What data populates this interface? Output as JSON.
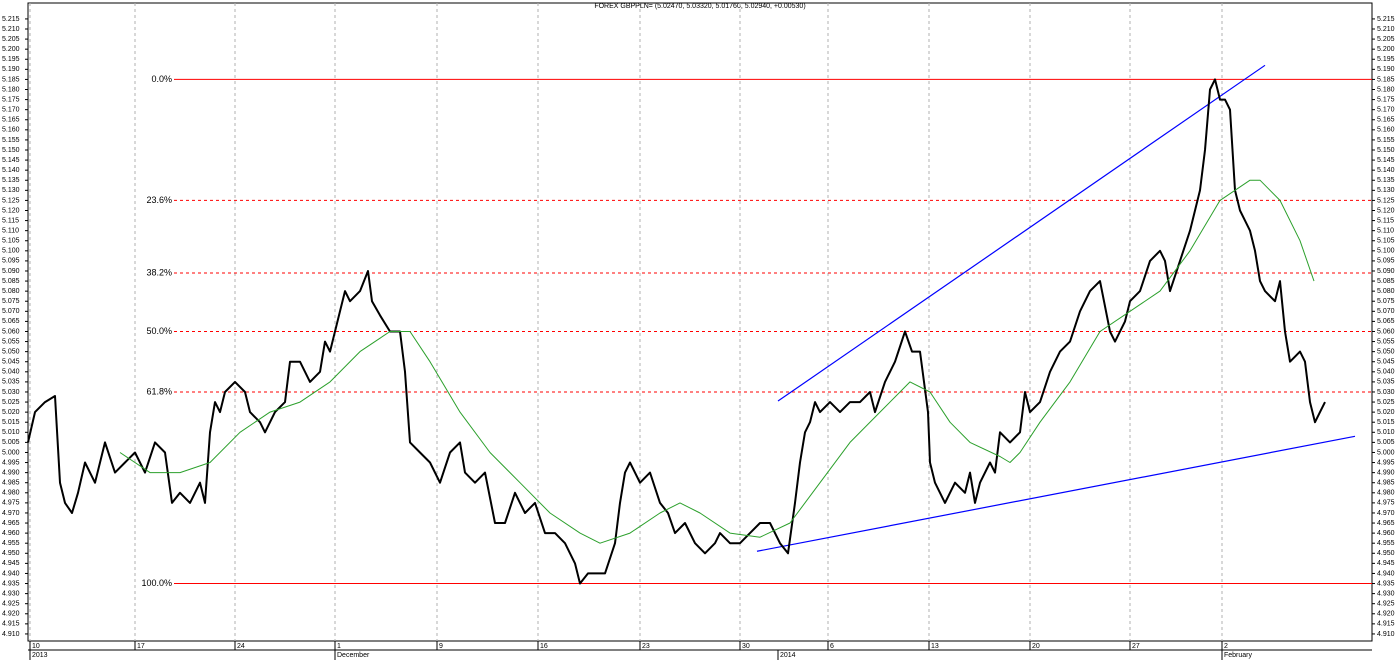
{
  "chart_data": {
    "type": "line",
    "title": "FOREX GBPPLN= (5.02470, 5.03320, 5.01760, 5.02940, +0.00530)",
    "xlim": [
      -0.1,
      67.1
    ],
    "ylim": [
      4.9065,
      5.2229
    ],
    "xticks": [
      {
        "value": 0,
        "label": "10"
      },
      {
        "value": 5.25,
        "label": "17"
      },
      {
        "value": 10.25,
        "label": "24"
      },
      {
        "value": 15.25,
        "label": "1"
      },
      {
        "value": 20.35,
        "label": "9"
      },
      {
        "value": 25.4,
        "label": "16"
      },
      {
        "value": 30.5,
        "label": "23"
      },
      {
        "value": 35.5,
        "label": "30"
      },
      {
        "value": 39.9,
        "label": "6"
      },
      {
        "value": 44.95,
        "label": "13"
      },
      {
        "value": 50,
        "label": "20"
      },
      {
        "value": 55,
        "label": "27"
      },
      {
        "value": 59.6,
        "label": "2"
      }
    ],
    "xticks_period": [
      {
        "value": 0,
        "label": "2013"
      },
      {
        "value": 15.25,
        "label": "December"
      },
      {
        "value": 37.4,
        "label": "2014"
      },
      {
        "value": 59.6,
        "label": "February"
      }
    ],
    "yticks": [
      {
        "value": 4.91,
        "label": "4.910"
      },
      4.915,
      {
        "value": 4.92,
        "label": "4.920"
      },
      4.925,
      {
        "value": 4.93,
        "label": "4.930"
      },
      4.935,
      {
        "value": 4.94,
        "label": "4.940"
      },
      4.945,
      {
        "value": 4.95,
        "label": "4.950"
      },
      4.955,
      {
        "value": 4.96,
        "label": "4.960"
      },
      4.965,
      {
        "value": 4.97,
        "label": "4.970"
      },
      4.975,
      {
        "value": 4.98,
        "label": "4.980"
      },
      4.985,
      {
        "value": 4.99,
        "label": "4.990"
      },
      4.995,
      {
        "value": 5,
        "label": "5.000"
      },
      5.005,
      {
        "value": 5.01,
        "label": "5.010"
      },
      5.015,
      {
        "value": 5.02,
        "label": "5.020"
      },
      5.025,
      {
        "value": 5.03,
        "label": "5.030"
      },
      5.035,
      {
        "value": 5.04,
        "label": "5.040"
      },
      5.045,
      {
        "value": 5.05,
        "label": "5.050"
      },
      5.055,
      {
        "value": 5.06,
        "label": "5.060"
      },
      5.065,
      {
        "value": 5.07,
        "label": "5.070"
      },
      5.075,
      {
        "value": 5.08,
        "label": "5.080"
      },
      5.085,
      {
        "value": 5.09,
        "label": "5.090"
      },
      5.095,
      {
        "value": 5.1,
        "label": "5.100"
      },
      5.105,
      {
        "value": 5.11,
        "label": "5.110"
      },
      5.115,
      {
        "value": 5.12,
        "label": "5.120"
      },
      5.125,
      {
        "value": 5.13,
        "label": "5.130"
      },
      5.135,
      {
        "value": 5.14,
        "label": "5.140"
      },
      5.145,
      {
        "value": 5.15,
        "label": "5.150"
      },
      5.155,
      {
        "value": 5.16,
        "label": "5.160"
      },
      5.165,
      {
        "value": 5.17,
        "label": "5.170"
      },
      5.175,
      {
        "value": 5.18,
        "label": "5.180"
      },
      5.185,
      {
        "value": 5.19,
        "label": "5.190"
      },
      5.195,
      {
        "value": 5.2,
        "label": "5.200"
      },
      5.205,
      {
        "value": 5.21,
        "label": "5.210"
      },
      5.215
    ],
    "grid": true,
    "series": [
      {
        "color": "#000000",
        "width": 2,
        "x": [
          -0.1,
          0.25,
          0.75,
          1.25,
          1.5,
          1.75,
          2.1,
          2.4,
          2.75,
          3.25,
          3.75,
          4.25,
          4.75,
          5.25,
          5.75,
          6.25,
          6.75,
          7.1,
          7.5,
          8,
          8.5,
          8.75,
          9,
          9.25,
          9.5,
          9.75,
          10.25,
          10.75,
          11,
          11.5,
          11.75,
          12.25,
          12.75,
          13,
          13.5,
          14,
          14.5,
          14.75,
          15,
          15.5,
          15.75,
          16,
          16.5,
          16.9,
          17.1,
          17.5,
          18,
          18.5,
          18.75,
          19,
          19.5,
          20,
          20.5,
          21,
          21.5,
          21.75,
          22.25,
          22.75,
          23.25,
          23.75,
          24.25,
          24.75,
          25.25,
          25.75,
          26.25,
          26.75,
          27.25,
          27.5,
          27.9,
          28.25,
          28.75,
          29.25,
          29.5,
          29.75,
          30,
          30.5,
          31,
          31.5,
          31.9,
          32.25,
          32.75,
          33.25,
          33.75,
          34.25,
          34.5,
          35,
          35.5,
          36,
          36.5,
          37,
          37.5,
          37.9,
          38.25,
          38.5,
          38.75,
          39,
          39.25,
          39.5,
          40,
          40.5,
          41,
          41.5,
          42,
          42.25,
          42.75,
          43.25,
          43.75,
          44.1,
          44.5,
          44.9,
          45,
          45.25,
          45.75,
          46.25,
          46.75,
          47,
          47.25,
          47.5,
          48,
          48.25,
          48.5,
          49,
          49.5,
          49.75,
          50,
          50.5,
          51,
          51.5,
          52,
          52.5,
          53,
          53.5,
          54,
          54.25,
          54.75,
          55,
          55.5,
          56,
          56.5,
          56.75,
          57,
          57.5,
          58,
          58.5,
          58.75,
          59,
          59.25,
          59.5,
          59.75,
          60,
          60.25,
          60.5,
          60.75,
          61,
          61.25,
          61.5,
          61.75,
          62.25,
          62.5,
          62.75,
          63,
          63.5,
          63.75,
          64,
          64.25,
          64.5,
          64.75
        ],
        "values": [
          5.005,
          5.02,
          5.025,
          5.028,
          4.985,
          4.975,
          4.97,
          4.98,
          4.995,
          4.985,
          5.005,
          4.99,
          4.995,
          5.0,
          4.99,
          5.005,
          5.0,
          4.975,
          4.98,
          4.975,
          4.985,
          4.975,
          5.01,
          5.025,
          5.02,
          5.03,
          5.035,
          5.03,
          5.02,
          5.015,
          5.01,
          5.02,
          5.025,
          5.045,
          5.045,
          5.035,
          5.04,
          5.055,
          5.05,
          5.07,
          5.08,
          5.075,
          5.08,
          5.09,
          5.075,
          5.068,
          5.06,
          5.06,
          5.04,
          5.005,
          5.0,
          4.995,
          4.985,
          5.0,
          5.005,
          4.99,
          4.985,
          4.99,
          4.965,
          4.965,
          4.98,
          4.97,
          4.975,
          4.96,
          4.96,
          4.955,
          4.945,
          4.935,
          4.94,
          4.94,
          4.94,
          4.955,
          4.975,
          4.99,
          4.995,
          4.985,
          4.99,
          4.975,
          4.97,
          4.96,
          4.965,
          4.955,
          4.95,
          4.955,
          4.96,
          4.955,
          4.955,
          4.96,
          4.965,
          4.965,
          4.955,
          4.95,
          4.975,
          4.995,
          5.01,
          5.015,
          5.025,
          5.02,
          5.025,
          5.02,
          5.025,
          5.025,
          5.03,
          5.02,
          5.035,
          5.045,
          5.06,
          5.05,
          5.05,
          5.02,
          4.995,
          4.985,
          4.975,
          4.985,
          4.98,
          4.99,
          4.975,
          4.985,
          4.995,
          4.99,
          5.01,
          5.005,
          5.01,
          5.03,
          5.02,
          5.025,
          5.04,
          5.05,
          5.055,
          5.07,
          5.08,
          5.085,
          5.06,
          5.055,
          5.065,
          5.075,
          5.08,
          5.095,
          5.1,
          5.095,
          5.08,
          5.095,
          5.11,
          5.13,
          5.15,
          5.18,
          5.185,
          5.175,
          5.175,
          5.17,
          5.13,
          5.12,
          5.115,
          5.11,
          5.1,
          5.085,
          5.08,
          5.075,
          5.085,
          5.06,
          5.045,
          5.05,
          5.045,
          5.025,
          5.015,
          5.02,
          5.025
        ]
      },
      {
        "color": "#2ca02c",
        "width": 1,
        "x": [
          4.5,
          6,
          7.5,
          9,
          10.5,
          12,
          13.5,
          15,
          16.5,
          18,
          19,
          20,
          21.5,
          23,
          24.5,
          26,
          27.5,
          28.5,
          30,
          31.5,
          32.5,
          33.5,
          35,
          36.5,
          38,
          39.5,
          41,
          42.5,
          44,
          45,
          46,
          47,
          48.5,
          49,
          49.5,
          50.5,
          52,
          53.5,
          55,
          56.5,
          58,
          59.5,
          61,
          61.5,
          62.5,
          63.5,
          64.2
        ],
        "values": [
          5.0,
          4.99,
          4.99,
          4.995,
          5.01,
          5.02,
          5.025,
          5.035,
          5.05,
          5.06,
          5.06,
          5.045,
          5.02,
          5.0,
          4.985,
          4.97,
          4.96,
          4.955,
          4.96,
          4.97,
          4.975,
          4.97,
          4.96,
          4.958,
          4.965,
          4.985,
          5.005,
          5.02,
          5.035,
          5.03,
          5.015,
          5.005,
          4.998,
          4.995,
          5.0,
          5.015,
          5.035,
          5.06,
          5.07,
          5.08,
          5.1,
          5.125,
          5.135,
          5.135,
          5.125,
          5.105,
          5.085
        ]
      }
    ],
    "levels_color": "#ff0000",
    "levels": [
      {
        "label": "0.0%",
        "value": 5.185,
        "style": "solid"
      },
      {
        "label": "23.6%",
        "value": 5.125,
        "style": "dashed"
      },
      {
        "label": "38.2%",
        "value": 5.089,
        "style": "dashed"
      },
      {
        "label": "50.0%",
        "value": 5.06,
        "style": "dashed"
      },
      {
        "label": "61.8%",
        "value": 5.03,
        "style": "dashed"
      },
      {
        "label": "100.0%",
        "value": 4.935,
        "style": "solid"
      }
    ],
    "trendlines_color": "#0000ff",
    "trendlines": [
      {
        "x": [
          37.4,
          61.75
        ],
        "y": [
          5.0255,
          5.192
        ]
      },
      {
        "x": [
          36.35,
          66.25
        ],
        "y": [
          4.951,
          5.008
        ]
      }
    ]
  }
}
